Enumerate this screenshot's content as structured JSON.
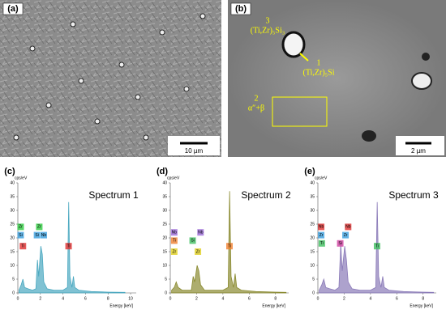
{
  "panels": [
    {
      "label": "(a)",
      "scale_bar": "10 µm"
    },
    {
      "label": "(b)",
      "scale_bar": "2 µm",
      "annotations": [
        "3",
        "(Ti,Zr)₅Si₃",
        "1",
        "(Ti,Zr)₅Si",
        "2",
        "α″+β"
      ]
    }
  ],
  "chart_data": [
    {
      "type": "line",
      "panel_label": "(c)",
      "title": "Spectrum 1",
      "ylabel": "cps/eV",
      "xlabel": "Energy [keV]",
      "color": "#4aa8c0",
      "x": [
        0.1,
        0.3,
        0.45,
        0.6,
        0.9,
        1.3,
        1.6,
        1.74,
        1.85,
        2.04,
        2.17,
        2.3,
        2.6,
        3.2,
        4.0,
        4.4,
        4.51,
        4.62,
        4.8,
        4.93,
        5.05,
        5.4,
        6.5,
        8.0,
        9.5
      ],
      "values": [
        1,
        3,
        5,
        2,
        1.5,
        1,
        1.5,
        12,
        6,
        17,
        14,
        4,
        1.5,
        1,
        1,
        2,
        33,
        6,
        2,
        6,
        2,
        1,
        0.5,
        0.3,
        0.2
      ],
      "xlim": [
        0,
        10.5
      ],
      "xticks": [
        0,
        2,
        4,
        6,
        8,
        10
      ],
      "ylim": [
        0,
        40
      ],
      "yticks": [
        0,
        5,
        10,
        15,
        20,
        25,
        30,
        35,
        40
      ],
      "annotations": [
        {
          "text": "Zr",
          "x": 0.25,
          "y": 24,
          "color": "#2ecc40"
        },
        {
          "text": "Si",
          "x": 0.25,
          "y": 21,
          "color": "#3aa0e0"
        },
        {
          "text": "Ti",
          "x": 0.45,
          "y": 17,
          "color": "#e03030"
        },
        {
          "text": "Zr",
          "x": 1.9,
          "y": 24,
          "color": "#2ecc40"
        },
        {
          "text": "Si",
          "x": 1.7,
          "y": 21,
          "color": "#3aa0e0"
        },
        {
          "text": "Nb",
          "x": 2.3,
          "y": 21,
          "color": "#3aa0e0"
        },
        {
          "text": "Ti",
          "x": 4.5,
          "y": 17,
          "color": "#e03030"
        }
      ]
    },
    {
      "type": "line",
      "panel_label": "(d)",
      "title": "Spectrum 2",
      "ylabel": "cps/eV",
      "xlabel": "Energy [keV]",
      "color": "#8a8a30",
      "x": [
        0.1,
        0.3,
        0.45,
        0.6,
        0.9,
        1.3,
        1.6,
        1.74,
        1.85,
        2.04,
        2.17,
        2.3,
        2.6,
        3.2,
        4.0,
        4.4,
        4.51,
        4.62,
        4.8,
        4.93,
        5.05,
        5.4,
        6.5,
        8.0,
        8.8
      ],
      "values": [
        1,
        2,
        4,
        2,
        1,
        1,
        1,
        6,
        4,
        10,
        8,
        3,
        1,
        1,
        1,
        2,
        37,
        6,
        2,
        7,
        2,
        1,
        0.5,
        0.3,
        0.2
      ],
      "xlim": [
        0,
        9
      ],
      "xticks": [
        0,
        2,
        4,
        6,
        8
      ],
      "ylim": [
        0,
        40
      ],
      "yticks": [
        0,
        5,
        10,
        15,
        20,
        25,
        30,
        35,
        40
      ],
      "annotations": [
        {
          "text": "Nb",
          "x": 0.3,
          "y": 22,
          "color": "#9b6ad8"
        },
        {
          "text": "Ti",
          "x": 0.3,
          "y": 19,
          "color": "#f08030"
        },
        {
          "text": "Zr",
          "x": 0.3,
          "y": 15,
          "color": "#e0d020"
        },
        {
          "text": "Nb",
          "x": 2.3,
          "y": 22,
          "color": "#9b6ad8"
        },
        {
          "text": "Si",
          "x": 1.7,
          "y": 19,
          "color": "#40c060"
        },
        {
          "text": "Zr",
          "x": 2.1,
          "y": 15,
          "color": "#e0d020"
        },
        {
          "text": "Ti",
          "x": 4.5,
          "y": 17,
          "color": "#f08030"
        }
      ]
    },
    {
      "type": "line",
      "panel_label": "(e)",
      "title": "Spectrum 3",
      "ylabel": "cps/eV",
      "xlabel": "Energy [keV]",
      "color": "#8a7ab8",
      "x": [
        0.1,
        0.3,
        0.45,
        0.6,
        0.9,
        1.3,
        1.6,
        1.74,
        1.85,
        2.04,
        2.17,
        2.3,
        2.6,
        3.2,
        4.0,
        4.4,
        4.51,
        4.62,
        4.8,
        4.93,
        5.05,
        5.4,
        6.5,
        8.0,
        8.8
      ],
      "values": [
        1,
        3,
        5,
        2,
        1.5,
        1,
        2,
        18,
        8,
        17,
        12,
        4,
        1.5,
        1,
        1,
        2,
        33,
        6,
        2,
        6,
        2,
        1,
        0.5,
        0.3,
        0.2
      ],
      "xlim": [
        0,
        9
      ],
      "xticks": [
        0,
        2,
        4,
        6,
        8
      ],
      "ylim": [
        0,
        40
      ],
      "yticks": [
        0,
        5,
        10,
        15,
        20,
        25,
        30,
        35,
        40
      ],
      "annotations": [
        {
          "text": "Nb",
          "x": 0.25,
          "y": 24,
          "color": "#e03030"
        },
        {
          "text": "Zr",
          "x": 0.25,
          "y": 21,
          "color": "#3aa0e0"
        },
        {
          "text": "Ti",
          "x": 0.3,
          "y": 18,
          "color": "#40c060"
        },
        {
          "text": "Nb",
          "x": 2.3,
          "y": 24,
          "color": "#e03030"
        },
        {
          "text": "Zr",
          "x": 2.1,
          "y": 21,
          "color": "#3aa0e0"
        },
        {
          "text": "Si",
          "x": 1.7,
          "y": 18,
          "color": "#d040a0"
        },
        {
          "text": "Ti",
          "x": 4.5,
          "y": 17,
          "color": "#40c060"
        }
      ]
    }
  ]
}
